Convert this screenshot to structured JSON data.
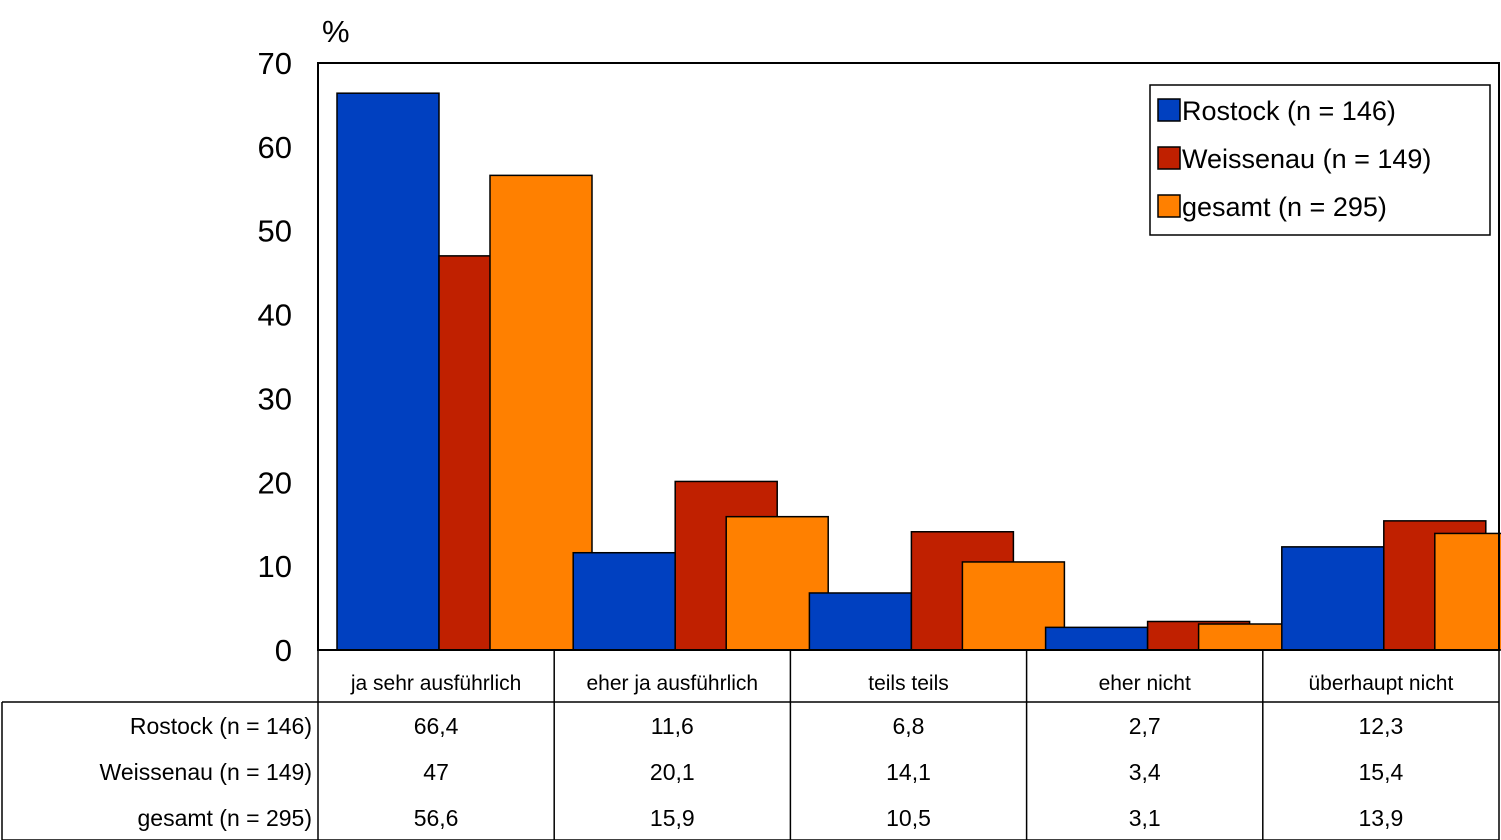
{
  "chart_data": {
    "type": "bar",
    "title": "",
    "xlabel": "",
    "ylabel": "%",
    "ylim": [
      0,
      70
    ],
    "yticks": [
      0,
      10,
      20,
      30,
      40,
      50,
      60,
      70
    ],
    "grid": false,
    "legend_position": "top-right",
    "categories": [
      "ja sehr ausführlich",
      "eher ja ausführlich",
      "teils teils",
      "eher nicht",
      "überhaupt nicht"
    ],
    "series": [
      {
        "name": "Rostock (n = 146)",
        "color": "#0040c0",
        "values": [
          66.4,
          11.6,
          6.8,
          2.7,
          12.3
        ],
        "value_labels": [
          "66,4",
          "11,6",
          "6,8",
          "2,7",
          "12,3"
        ]
      },
      {
        "name": "Weissenau (n = 149)",
        "color": "#c02000",
        "values": [
          47,
          20.1,
          14.1,
          3.4,
          15.4
        ],
        "value_labels": [
          "47",
          "20,1",
          "14,1",
          "3,4",
          "15,4"
        ]
      },
      {
        "name": "gesamt (n = 295)",
        "color": "#ff8000",
        "values": [
          56.6,
          15.9,
          10.5,
          3.1,
          13.9
        ],
        "value_labels": [
          "56,6",
          "15,9",
          "10,5",
          "3,1",
          "13,9"
        ]
      }
    ]
  }
}
